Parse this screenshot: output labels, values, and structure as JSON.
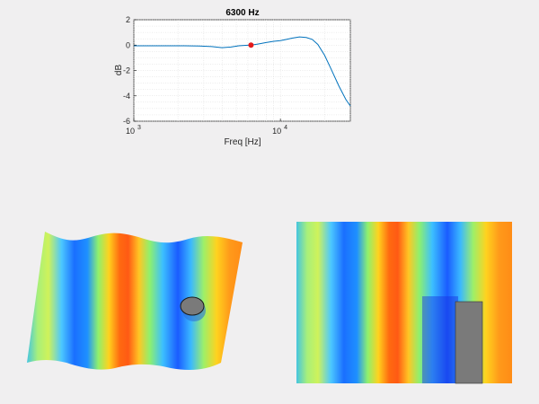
{
  "chart_data": {
    "type": "line",
    "title": "6300 Hz",
    "xlabel": "Freq [Hz]",
    "ylabel": "dB",
    "xscale": "log",
    "xlim": [
      1000,
      30000
    ],
    "ylim": [
      -6,
      2
    ],
    "grid": true,
    "xticks": [
      {
        "value": 1000,
        "base": "10",
        "exp": "3"
      },
      {
        "value": 10000,
        "base": "10",
        "exp": "4"
      }
    ],
    "yticks": [
      2,
      0,
      -2,
      -4,
      -6
    ],
    "series": [
      {
        "color": "#0072bd",
        "x": [
          1000,
          1300,
          1700,
          2200,
          2800,
          3400,
          4000,
          4600,
          5200,
          5800,
          6300,
          7000,
          8000,
          9000,
          10000,
          11000,
          12000,
          13500,
          15000,
          16500,
          18000,
          20000,
          22000,
          25000,
          28000,
          30000
        ],
        "y": [
          -0.05,
          -0.05,
          -0.05,
          -0.05,
          -0.07,
          -0.12,
          -0.2,
          -0.15,
          -0.05,
          -0.02,
          0.0,
          0.08,
          0.2,
          0.3,
          0.35,
          0.45,
          0.55,
          0.65,
          0.6,
          0.45,
          0.05,
          -0.8,
          -1.8,
          -3.2,
          -4.3,
          -4.8
        ]
      }
    ],
    "marker": {
      "x": 6300,
      "y": 0,
      "color": "#e31a1c"
    }
  },
  "colormap": "jet",
  "obstacle_color": "#7a7a7a"
}
